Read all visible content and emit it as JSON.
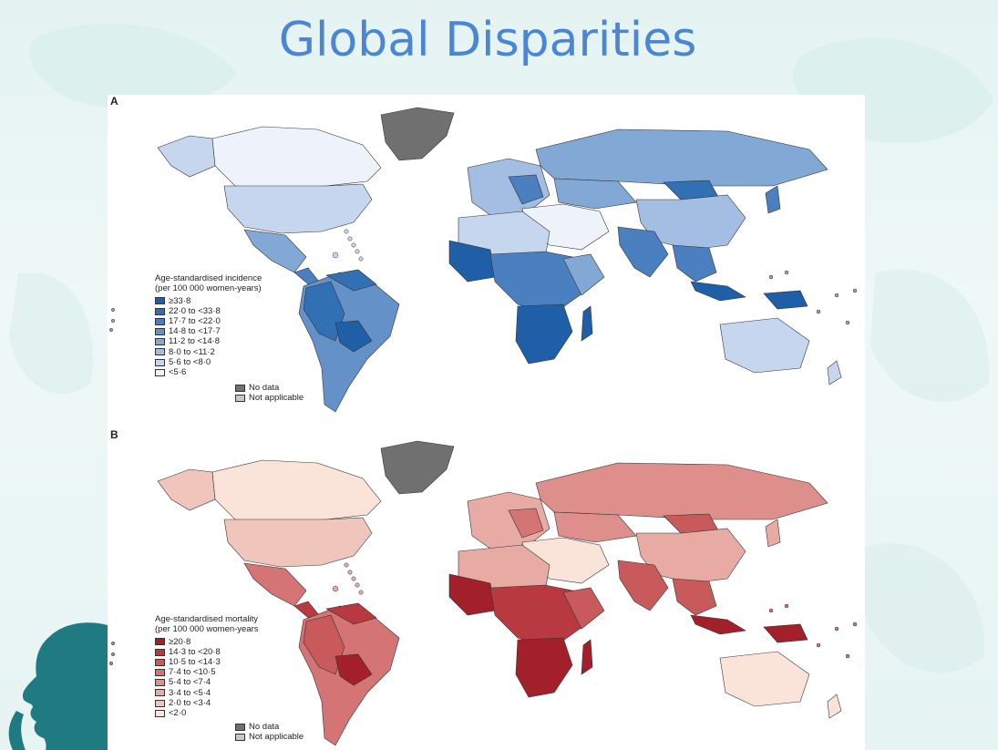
{
  "slide": {
    "title": "Global Disparities"
  },
  "panel_a": {
    "letter": "A",
    "legend_title_line1": "Age-standardised incidence",
    "legend_title_line2": "(per 100 000 women-years)",
    "bins": [
      {
        "label": "≥33·8",
        "color": "#1f5fa8"
      },
      {
        "label": "22·0 to <33·8",
        "color": "#3270b4"
      },
      {
        "label": "17·7 to <22·0",
        "color": "#4a80c0"
      },
      {
        "label": "14·8 to <17·7",
        "color": "#6492c8"
      },
      {
        "label": "11·2 to <14·8",
        "color": "#82a8d6"
      },
      {
        "label": "8·0 to <11·2",
        "color": "#a3bee2"
      },
      {
        "label": "5·6 to <8·0",
        "color": "#c6d6ee"
      },
      {
        "label": "<5·6",
        "color": "#eef2fa"
      }
    ],
    "no_data_label": "No data",
    "not_applicable_label": "Not applicable"
  },
  "panel_b": {
    "letter": "B",
    "legend_title_line1": "Age-standardised mortality",
    "legend_title_line2": "(per 100 000 women-years",
    "bins": [
      {
        "label": "≥20·8",
        "color": "#a3202b"
      },
      {
        "label": "14·3 to <20·8",
        "color": "#b83a40"
      },
      {
        "label": "10·5 to <14·3",
        "color": "#c85a5c"
      },
      {
        "label": "7·4 to <10·5",
        "color": "#d47474"
      },
      {
        "label": "5·4 to <7·4",
        "color": "#de8f8c"
      },
      {
        "label": "3·4 to <5·4",
        "color": "#e8aba4"
      },
      {
        "label": "2·0 to <3·4",
        "color": "#f0c6bc"
      },
      {
        "label": "<2·0",
        "color": "#fae4da"
      }
    ],
    "no_data_label": "No data",
    "not_applicable_label": "Not applicable"
  },
  "colors": {
    "no_data": "#707070",
    "not_applicable": "#c8c8c8",
    "profile": "#1f7a82",
    "title": "#4a86d4"
  }
}
